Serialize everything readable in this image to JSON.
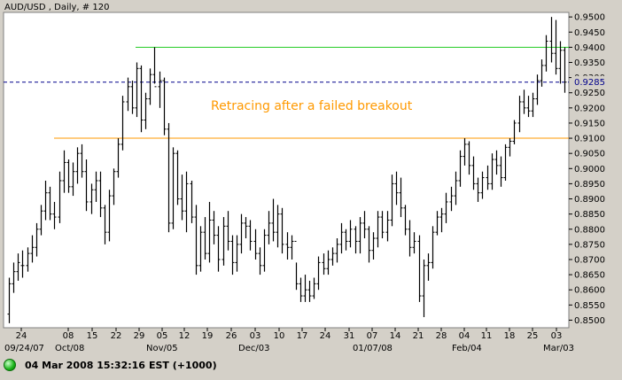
{
  "window": {
    "title": "AUD/USD , Daily, # 120",
    "status_time": "04 Mar 2008 15:32:16",
    "status_tz": "EST (+1000)"
  },
  "chart_data": {
    "type": "ohlc",
    "title": "AUD/USD , Daily, # 120",
    "ylim": [
      0.8475,
      0.9515
    ],
    "yticks": [
      "0.9500",
      "0.9450",
      "0.9400",
      "0.9350",
      "0.9300",
      "0.9250",
      "0.9200",
      "0.9150",
      "0.9100",
      "0.9050",
      "0.9000",
      "0.8950",
      "0.8900",
      "0.8850",
      "0.8800",
      "0.8750",
      "0.8700",
      "0.8650",
      "0.8600",
      "0.8550",
      "0.8500"
    ],
    "current_price_label": "0.9285",
    "x_day_labels": [
      "24",
      "08",
      "15",
      "22",
      "29",
      "05",
      "12",
      "19",
      "26",
      "03",
      "10",
      "17",
      "24",
      "31",
      "07",
      "14",
      "21",
      "28",
      "04",
      "11",
      "18",
      "25",
      "03"
    ],
    "x_month_labels": [
      "09/24/07",
      "Oct/08",
      "Nov/05",
      "Dec/03",
      "01/07/08",
      "Feb/04",
      "Mar/03"
    ],
    "lines": [
      {
        "name": "resistance",
        "value": 0.94,
        "color": "#22cc22"
      },
      {
        "name": "support",
        "value": 0.91,
        "color": "#ff9900"
      },
      {
        "name": "current",
        "value": 0.9285,
        "color": "#00008b",
        "dashed": true
      }
    ],
    "annotation": "Retracing after a failed breakout",
    "colors": {
      "bars": "#000000",
      "plot_bg": "#ffffff",
      "frame_bg": "#d4d0c8"
    },
    "bars": [
      [
        0.852,
        0.864,
        0.849,
        0.862
      ],
      [
        0.862,
        0.869,
        0.859,
        0.866
      ],
      [
        0.866,
        0.872,
        0.863,
        0.869
      ],
      [
        0.868,
        0.873,
        0.864,
        0.868
      ],
      [
        0.868,
        0.874,
        0.866,
        0.872
      ],
      [
        0.872,
        0.878,
        0.869,
        0.874
      ],
      [
        0.874,
        0.882,
        0.871,
        0.88
      ],
      [
        0.88,
        0.888,
        0.878,
        0.886
      ],
      [
        0.886,
        0.896,
        0.883,
        0.892
      ],
      [
        0.892,
        0.894,
        0.883,
        0.885
      ],
      [
        0.885,
        0.889,
        0.88,
        0.884
      ],
      [
        0.884,
        0.899,
        0.882,
        0.896
      ],
      [
        0.896,
        0.906,
        0.892,
        0.902
      ],
      [
        0.902,
        0.903,
        0.892,
        0.894
      ],
      [
        0.894,
        0.902,
        0.891,
        0.899
      ],
      [
        0.899,
        0.907,
        0.895,
        0.905
      ],
      [
        0.905,
        0.908,
        0.897,
        0.899
      ],
      [
        0.899,
        0.903,
        0.886,
        0.889
      ],
      [
        0.889,
        0.895,
        0.885,
        0.893
      ],
      [
        0.893,
        0.899,
        0.889,
        0.896
      ],
      [
        0.896,
        0.899,
        0.884,
        0.887
      ],
      [
        0.887,
        0.888,
        0.875,
        0.879
      ],
      [
        0.879,
        0.893,
        0.876,
        0.891
      ],
      [
        0.891,
        0.9,
        0.888,
        0.899
      ],
      [
        0.899,
        0.91,
        0.897,
        0.908
      ],
      [
        0.908,
        0.924,
        0.906,
        0.922
      ],
      [
        0.922,
        0.93,
        0.919,
        0.927
      ],
      [
        0.927,
        0.929,
        0.918,
        0.92
      ],
      [
        0.92,
        0.935,
        0.917,
        0.933
      ],
      [
        0.933,
        0.934,
        0.912,
        0.916
      ],
      [
        0.916,
        0.925,
        0.913,
        0.923
      ],
      [
        0.923,
        0.933,
        0.921,
        0.931
      ],
      [
        0.931,
        0.94,
        0.928,
        0.927
      ],
      [
        0.927,
        0.932,
        0.92,
        0.929
      ],
      [
        0.929,
        0.93,
        0.911,
        0.913
      ],
      [
        0.913,
        0.915,
        0.879,
        0.882
      ],
      [
        0.882,
        0.907,
        0.88,
        0.905
      ],
      [
        0.905,
        0.906,
        0.888,
        0.89
      ],
      [
        0.89,
        0.898,
        0.883,
        0.886
      ],
      [
        0.886,
        0.899,
        0.879,
        0.895
      ],
      [
        0.895,
        0.896,
        0.882,
        0.884
      ],
      [
        0.884,
        0.888,
        0.865,
        0.868
      ],
      [
        0.868,
        0.881,
        0.866,
        0.879
      ],
      [
        0.879,
        0.884,
        0.87,
        0.872
      ],
      [
        0.872,
        0.889,
        0.869,
        0.883
      ],
      [
        0.883,
        0.886,
        0.875,
        0.878
      ],
      [
        0.878,
        0.881,
        0.866,
        0.87
      ],
      [
        0.87,
        0.884,
        0.868,
        0.881
      ],
      [
        0.881,
        0.886,
        0.873,
        0.876
      ],
      [
        0.876,
        0.878,
        0.865,
        0.869
      ],
      [
        0.869,
        0.878,
        0.866,
        0.875
      ],
      [
        0.875,
        0.885,
        0.872,
        0.882
      ],
      [
        0.882,
        0.884,
        0.877,
        0.881
      ],
      [
        0.881,
        0.883,
        0.873,
        0.876
      ],
      [
        0.876,
        0.88,
        0.87,
        0.872
      ],
      [
        0.872,
        0.874,
        0.865,
        0.868
      ],
      [
        0.868,
        0.88,
        0.866,
        0.878
      ],
      [
        0.878,
        0.886,
        0.875,
        0.882
      ],
      [
        0.882,
        0.89,
        0.876,
        0.879
      ],
      [
        0.879,
        0.888,
        0.874,
        0.885
      ],
      [
        0.885,
        0.887,
        0.872,
        0.875
      ],
      [
        0.875,
        0.879,
        0.87,
        0.874
      ],
      [
        0.874,
        0.878,
        0.87,
        0.876
      ],
      [
        0.876,
        0.869,
        0.86,
        0.862
      ],
      [
        0.862,
        0.864,
        0.856,
        0.858
      ],
      [
        0.858,
        0.865,
        0.856,
        0.86
      ],
      [
        0.86,
        0.863,
        0.856,
        0.858
      ],
      [
        0.858,
        0.864,
        0.857,
        0.862
      ],
      [
        0.862,
        0.871,
        0.86,
        0.869
      ],
      [
        0.869,
        0.872,
        0.865,
        0.867
      ],
      [
        0.867,
        0.873,
        0.865,
        0.87
      ],
      [
        0.87,
        0.874,
        0.868,
        0.872
      ],
      [
        0.872,
        0.877,
        0.869,
        0.875
      ],
      [
        0.875,
        0.882,
        0.872,
        0.879
      ],
      [
        0.879,
        0.88,
        0.873,
        0.876
      ],
      [
        0.876,
        0.883,
        0.874,
        0.88
      ],
      [
        0.88,
        0.881,
        0.872,
        0.876
      ],
      [
        0.876,
        0.884,
        0.872,
        0.882
      ],
      [
        0.882,
        0.886,
        0.877,
        0.88
      ],
      [
        0.88,
        0.881,
        0.869,
        0.873
      ],
      [
        0.873,
        0.879,
        0.87,
        0.877
      ],
      [
        0.877,
        0.886,
        0.874,
        0.884
      ],
      [
        0.884,
        0.886,
        0.877,
        0.879
      ],
      [
        0.879,
        0.886,
        0.876,
        0.883
      ],
      [
        0.883,
        0.898,
        0.881,
        0.895
      ],
      [
        0.895,
        0.899,
        0.888,
        0.892
      ],
      [
        0.892,
        0.897,
        0.884,
        0.887
      ],
      [
        0.887,
        0.888,
        0.878,
        0.88
      ],
      [
        0.88,
        0.883,
        0.871,
        0.874
      ],
      [
        0.874,
        0.879,
        0.872,
        0.876
      ],
      [
        0.876,
        0.878,
        0.856,
        0.858
      ],
      [
        0.858,
        0.87,
        0.851,
        0.868
      ],
      [
        0.868,
        0.872,
        0.863,
        0.869
      ],
      [
        0.869,
        0.881,
        0.867,
        0.879
      ],
      [
        0.879,
        0.886,
        0.878,
        0.884
      ],
      [
        0.884,
        0.887,
        0.879,
        0.885
      ],
      [
        0.885,
        0.892,
        0.882,
        0.889
      ],
      [
        0.889,
        0.894,
        0.886,
        0.891
      ],
      [
        0.891,
        0.899,
        0.888,
        0.896
      ],
      [
        0.896,
        0.906,
        0.894,
        0.904
      ],
      [
        0.904,
        0.91,
        0.901,
        0.908
      ],
      [
        0.908,
        0.909,
        0.898,
        0.901
      ],
      [
        0.901,
        0.904,
        0.893,
        0.895
      ],
      [
        0.895,
        0.897,
        0.889,
        0.892
      ],
      [
        0.892,
        0.899,
        0.89,
        0.897
      ],
      [
        0.897,
        0.901,
        0.893,
        0.895
      ],
      [
        0.895,
        0.905,
        0.893,
        0.903
      ],
      [
        0.903,
        0.906,
        0.898,
        0.901
      ],
      [
        0.901,
        0.904,
        0.894,
        0.897
      ],
      [
        0.897,
        0.908,
        0.896,
        0.907
      ],
      [
        0.907,
        0.91,
        0.904,
        0.909
      ],
      [
        0.909,
        0.916,
        0.908,
        0.915
      ],
      [
        0.915,
        0.924,
        0.912,
        0.922
      ],
      [
        0.922,
        0.926,
        0.918,
        0.92
      ],
      [
        0.92,
        0.924,
        0.917,
        0.919
      ],
      [
        0.919,
        0.925,
        0.917,
        0.923
      ],
      [
        0.923,
        0.931,
        0.921,
        0.929
      ],
      [
        0.929,
        0.936,
        0.927,
        0.934
      ],
      [
        0.934,
        0.944,
        0.932,
        0.942
      ],
      [
        0.942,
        0.95,
        0.935,
        0.938
      ],
      [
        0.938,
        0.949,
        0.931,
        0.933
      ],
      [
        0.933,
        0.942,
        0.928,
        0.939
      ],
      [
        0.939,
        0.94,
        0.925,
        0.9285
      ]
    ]
  }
}
